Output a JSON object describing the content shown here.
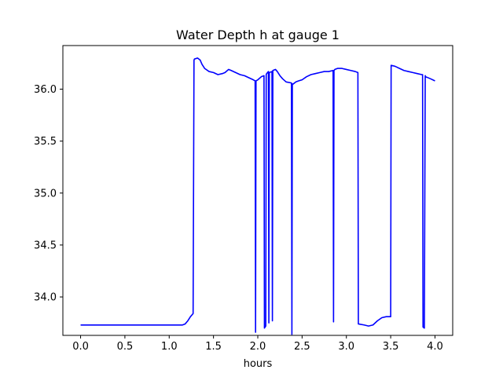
{
  "chart_data": {
    "type": "line",
    "title": "Water Depth h at gauge 1",
    "xlabel": "hours",
    "ylabel": "",
    "xlim": [
      -0.2,
      4.2
    ],
    "ylim": [
      33.63,
      36.42
    ],
    "xticks": [
      0.0,
      0.5,
      1.0,
      1.5,
      2.0,
      2.5,
      3.0,
      3.5,
      4.0
    ],
    "xtick_labels": [
      "0.0",
      "0.5",
      "1.0",
      "1.5",
      "2.0",
      "2.5",
      "3.0",
      "3.5",
      "4.0"
    ],
    "yticks": [
      34.0,
      34.5,
      35.0,
      35.5,
      36.0
    ],
    "ytick_labels": [
      "34.0",
      "34.5",
      "35.0",
      "35.5",
      "36.0"
    ],
    "grid": false,
    "series": [
      {
        "color": "#0000ff",
        "x": [
          0.0,
          0.5,
          1.0,
          1.15,
          1.18,
          1.21,
          1.24,
          1.27,
          1.28,
          1.285,
          1.32,
          1.35,
          1.37,
          1.4,
          1.45,
          1.5,
          1.55,
          1.6,
          1.63,
          1.67,
          1.7,
          1.75,
          1.8,
          1.85,
          1.9,
          1.95,
          1.97,
          1.975,
          1.98,
          2.0,
          2.04,
          2.07,
          2.075,
          2.09,
          2.095,
          2.1,
          2.12,
          2.125,
          2.13,
          2.16,
          2.165,
          2.17,
          2.2,
          2.22,
          2.25,
          2.28,
          2.32,
          2.38,
          2.385,
          2.39,
          2.4,
          2.43,
          2.46,
          2.5,
          2.55,
          2.6,
          2.65,
          2.7,
          2.75,
          2.8,
          2.85,
          2.855,
          2.86,
          2.87,
          2.9,
          2.95,
          3.0,
          3.05,
          3.1,
          3.13,
          3.135,
          3.2,
          3.25,
          3.3,
          3.35,
          3.4,
          3.45,
          3.5,
          3.505,
          3.55,
          3.6,
          3.65,
          3.7,
          3.75,
          3.8,
          3.85,
          3.86,
          3.865,
          3.88,
          3.89,
          3.895,
          3.95,
          4.0
        ],
        "values": [
          33.73,
          33.73,
          33.73,
          33.73,
          33.74,
          33.77,
          33.81,
          33.84,
          36.28,
          36.29,
          36.3,
          36.28,
          36.24,
          36.2,
          36.17,
          36.16,
          36.14,
          36.15,
          36.16,
          36.19,
          36.18,
          36.16,
          36.14,
          36.13,
          36.11,
          36.09,
          36.08,
          33.66,
          36.08,
          36.09,
          36.12,
          36.13,
          33.7,
          33.72,
          36.14,
          36.15,
          36.17,
          33.75,
          36.16,
          36.17,
          33.77,
          36.18,
          36.19,
          36.17,
          36.13,
          36.1,
          36.07,
          36.06,
          33.64,
          36.05,
          36.05,
          36.07,
          36.08,
          36.09,
          36.12,
          36.14,
          36.15,
          36.16,
          36.17,
          36.17,
          36.18,
          33.76,
          36.18,
          36.19,
          36.2,
          36.2,
          36.19,
          36.18,
          36.17,
          36.16,
          33.74,
          33.73,
          33.72,
          33.73,
          33.77,
          33.8,
          33.81,
          33.81,
          36.23,
          36.22,
          36.2,
          36.18,
          36.17,
          36.16,
          36.15,
          36.14,
          36.14,
          33.71,
          33.7,
          36.13,
          36.12,
          36.1,
          36.08
        ]
      }
    ]
  }
}
